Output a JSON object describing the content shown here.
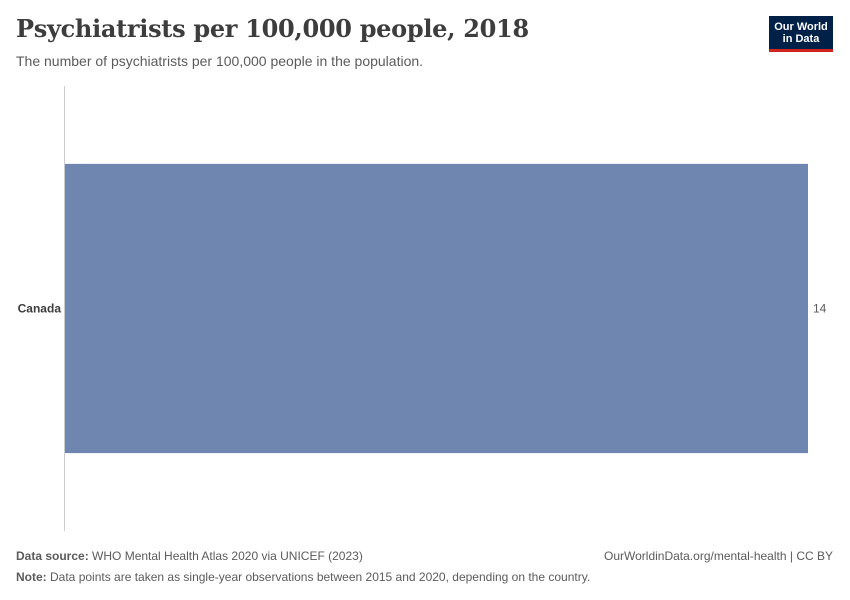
{
  "header": {
    "title": "Psychiatrists per 100,000 people, 2018",
    "subtitle": "The number of psychiatrists per 100,000 people in the population."
  },
  "logo": {
    "line1": "Our World",
    "line2": "in Data",
    "bg_color": "#002147",
    "accent_color": "#ce261e"
  },
  "chart_data": {
    "type": "bar",
    "orientation": "horizontal",
    "categories": [
      "Canada"
    ],
    "values": [
      14
    ],
    "value_labels": [
      "14"
    ],
    "title": "Psychiatrists per 100,000 people, 2018",
    "subtitle": "The number of psychiatrists per 100,000 people in the population.",
    "xlim": [
      0,
      14
    ],
    "grid": false,
    "bar_color": "#6f87b0"
  },
  "footer": {
    "source_label": "Data source:",
    "source_text": " WHO Mental Health Atlas 2020 via UNICEF (2023)",
    "link_text": "OurWorldinData.org/mental-health | CC BY",
    "note_label": "Note:",
    "note_text": " Data points are taken as single-year observations between 2015 and 2020, depending on the country."
  }
}
